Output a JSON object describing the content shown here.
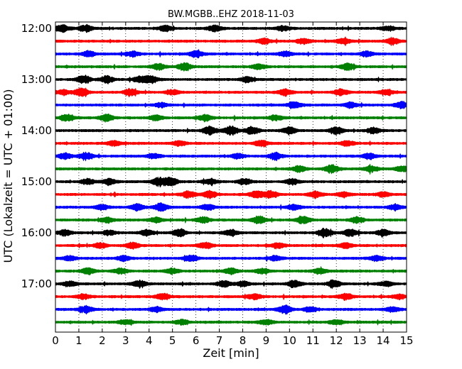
{
  "chart_data": {
    "type": "line",
    "title": "BW.MGBB..EHZ 2018-11-03",
    "xlabel": "Zeit  [min]",
    "ylabel": "UTC (Lokalzeit = UTC + 01:00)",
    "xlim": [
      0,
      15
    ],
    "x_ticks": [
      "0",
      "1",
      "2",
      "3",
      "4",
      "5",
      "6",
      "7",
      "8",
      "9",
      "10",
      "11",
      "12",
      "13",
      "14",
      "15"
    ],
    "y_ticks": [
      "12:00",
      "13:00",
      "14:00",
      "15:00",
      "16:00",
      "17:00"
    ],
    "grid": "vertical-dotted",
    "colors": [
      "#000000",
      "#ff0000",
      "#0000ff",
      "#008000"
    ],
    "traces": [
      {
        "start": "12:00",
        "color": "#000000",
        "bursts": [
          [
            0.3,
            0.8
          ],
          [
            1.3,
            0.8
          ],
          [
            4.7,
            0.6
          ],
          [
            6.8,
            0.7
          ],
          [
            9.7,
            0.6
          ],
          [
            14.2,
            0.5
          ]
        ]
      },
      {
        "start": "12:15",
        "color": "#ff0000",
        "bursts": [
          [
            8.9,
            0.7
          ],
          [
            10.6,
            0.6
          ],
          [
            12.3,
            0.6
          ],
          [
            14.4,
            0.7
          ]
        ]
      },
      {
        "start": "12:30",
        "color": "#0000ff",
        "bursts": [
          [
            1.4,
            0.7
          ],
          [
            3.3,
            0.6
          ],
          [
            6.0,
            0.8
          ],
          [
            9.8,
            0.6
          ],
          [
            13.3,
            0.6
          ]
        ]
      },
      {
        "start": "12:45",
        "color": "#008000",
        "bursts": [
          [
            4.4,
            0.7
          ],
          [
            5.5,
            0.9
          ],
          [
            8.7,
            0.6
          ],
          [
            12.5,
            0.8
          ]
        ]
      },
      {
        "start": "13:00",
        "color": "#000000",
        "bursts": [
          [
            1.2,
            1.0
          ],
          [
            2.2,
            0.8
          ],
          [
            3.6,
            0.8
          ],
          [
            4.1,
            0.9
          ],
          [
            8.2,
            0.6
          ]
        ]
      },
      {
        "start": "13:15",
        "color": "#ff0000",
        "bursts": [
          [
            0.3,
            0.6
          ],
          [
            1.1,
            1.0
          ],
          [
            3.2,
            0.8
          ],
          [
            5.0,
            0.6
          ],
          [
            9.8,
            0.7
          ],
          [
            12.2,
            0.7
          ],
          [
            14.1,
            0.6
          ]
        ]
      },
      {
        "start": "13:30",
        "color": "#0000ff",
        "bursts": [
          [
            4.5,
            0.5
          ],
          [
            10.2,
            0.8
          ],
          [
            12.6,
            0.7
          ],
          [
            14.8,
            0.8
          ]
        ]
      },
      {
        "start": "13:45",
        "color": "#008000",
        "bursts": [
          [
            0.5,
            0.8
          ],
          [
            2.2,
            0.8
          ],
          [
            4.3,
            0.6
          ],
          [
            6.4,
            0.7
          ],
          [
            9.4,
            0.6
          ]
        ]
      },
      {
        "start": "14:00",
        "color": "#000000",
        "bursts": [
          [
            6.6,
            1.0
          ],
          [
            7.5,
            1.0
          ],
          [
            8.4,
            1.0
          ],
          [
            10.0,
            0.9
          ],
          [
            12.0,
            0.9
          ],
          [
            13.6,
            0.7
          ]
        ]
      },
      {
        "start": "14:15",
        "color": "#ff0000",
        "bursts": [
          [
            2.5,
            0.6
          ],
          [
            5.3,
            0.6
          ],
          [
            8.8,
            0.7
          ],
          [
            12.5,
            0.6
          ]
        ]
      },
      {
        "start": "14:30",
        "color": "#0000ff",
        "bursts": [
          [
            0.4,
            0.7
          ],
          [
            1.3,
            0.9
          ],
          [
            4.2,
            0.6
          ],
          [
            7.8,
            0.6
          ],
          [
            9.4,
            0.8
          ],
          [
            13.4,
            0.6
          ]
        ]
      },
      {
        "start": "14:45",
        "color": "#008000",
        "bursts": [
          [
            10.4,
            0.7
          ],
          [
            11.8,
            1.0
          ],
          [
            13.5,
            0.7
          ],
          [
            14.8,
            0.7
          ]
        ]
      },
      {
        "start": "15:00",
        "color": "#000000",
        "bursts": [
          [
            1.4,
            0.7
          ],
          [
            2.3,
            0.7
          ],
          [
            4.4,
            0.9
          ],
          [
            4.9,
            1.0
          ],
          [
            6.6,
            0.7
          ],
          [
            8.1,
            0.7
          ],
          [
            10.1,
            0.7
          ]
        ]
      },
      {
        "start": "15:15",
        "color": "#ff0000",
        "bursts": [
          [
            5.7,
            0.8
          ],
          [
            6.6,
            0.8
          ],
          [
            8.6,
            1.0
          ],
          [
            9.2,
            0.8
          ],
          [
            11.1,
            0.7
          ],
          [
            12.3,
            0.6
          ],
          [
            14.0,
            0.6
          ]
        ]
      },
      {
        "start": "15:30",
        "color": "#0000ff",
        "bursts": [
          [
            2.0,
            0.6
          ],
          [
            3.5,
            0.8
          ],
          [
            4.5,
            1.0
          ],
          [
            6.5,
            0.7
          ],
          [
            10.2,
            0.6
          ],
          [
            14.5,
            0.6
          ]
        ]
      },
      {
        "start": "15:45",
        "color": "#008000",
        "bursts": [
          [
            2.2,
            0.6
          ],
          [
            4.3,
            0.6
          ],
          [
            6.3,
            0.7
          ],
          [
            8.7,
            0.9
          ],
          [
            10.6,
            0.8
          ],
          [
            12.9,
            0.7
          ]
        ]
      },
      {
        "start": "16:00",
        "color": "#000000",
        "bursts": [
          [
            0.4,
            0.7
          ],
          [
            2.3,
            0.6
          ],
          [
            3.9,
            0.7
          ],
          [
            5.3,
            0.9
          ],
          [
            7.5,
            0.7
          ],
          [
            11.5,
            1.0
          ],
          [
            12.6,
            0.9
          ],
          [
            14.0,
            0.8
          ]
        ]
      },
      {
        "start": "16:15",
        "color": "#ff0000",
        "bursts": [
          [
            1.9,
            0.6
          ],
          [
            3.3,
            0.7
          ],
          [
            6.4,
            0.7
          ],
          [
            9.5,
            0.6
          ],
          [
            12.4,
            0.6
          ]
        ]
      },
      {
        "start": "16:30",
        "color": "#0000ff",
        "bursts": [
          [
            0.6,
            0.6
          ],
          [
            2.9,
            0.6
          ],
          [
            5.8,
            0.7
          ],
          [
            9.4,
            0.6
          ],
          [
            13.7,
            0.6
          ]
        ]
      },
      {
        "start": "16:45",
        "color": "#008000",
        "bursts": [
          [
            1.4,
            0.7
          ],
          [
            2.8,
            0.7
          ],
          [
            5.0,
            0.6
          ],
          [
            7.5,
            0.7
          ],
          [
            8.8,
            0.6
          ],
          [
            11.3,
            0.6
          ]
        ]
      },
      {
        "start": "17:00",
        "color": "#000000",
        "bursts": [
          [
            0.6,
            0.6
          ],
          [
            3.6,
            0.8
          ],
          [
            7.2,
            0.7
          ],
          [
            8.0,
            0.6
          ],
          [
            10.2,
            0.8
          ],
          [
            11.9,
            0.9
          ],
          [
            14.1,
            0.6
          ]
        ]
      },
      {
        "start": "17:15",
        "color": "#ff0000",
        "bursts": [
          [
            1.2,
            0.6
          ],
          [
            4.6,
            0.8
          ],
          [
            8.5,
            0.7
          ],
          [
            12.4,
            0.7
          ],
          [
            14.7,
            0.5
          ]
        ]
      },
      {
        "start": "17:30",
        "color": "#0000ff",
        "bursts": [
          [
            1.3,
            0.8
          ],
          [
            4.3,
            0.6
          ],
          [
            9.8,
            0.9
          ],
          [
            10.9,
            0.6
          ],
          [
            14.4,
            0.6
          ]
        ]
      },
      {
        "start": "17:45",
        "color": "#008000",
        "bursts": [
          [
            3.0,
            0.6
          ],
          [
            5.4,
            0.6
          ],
          [
            9.0,
            0.6
          ],
          [
            12.0,
            0.6
          ]
        ]
      }
    ]
  }
}
